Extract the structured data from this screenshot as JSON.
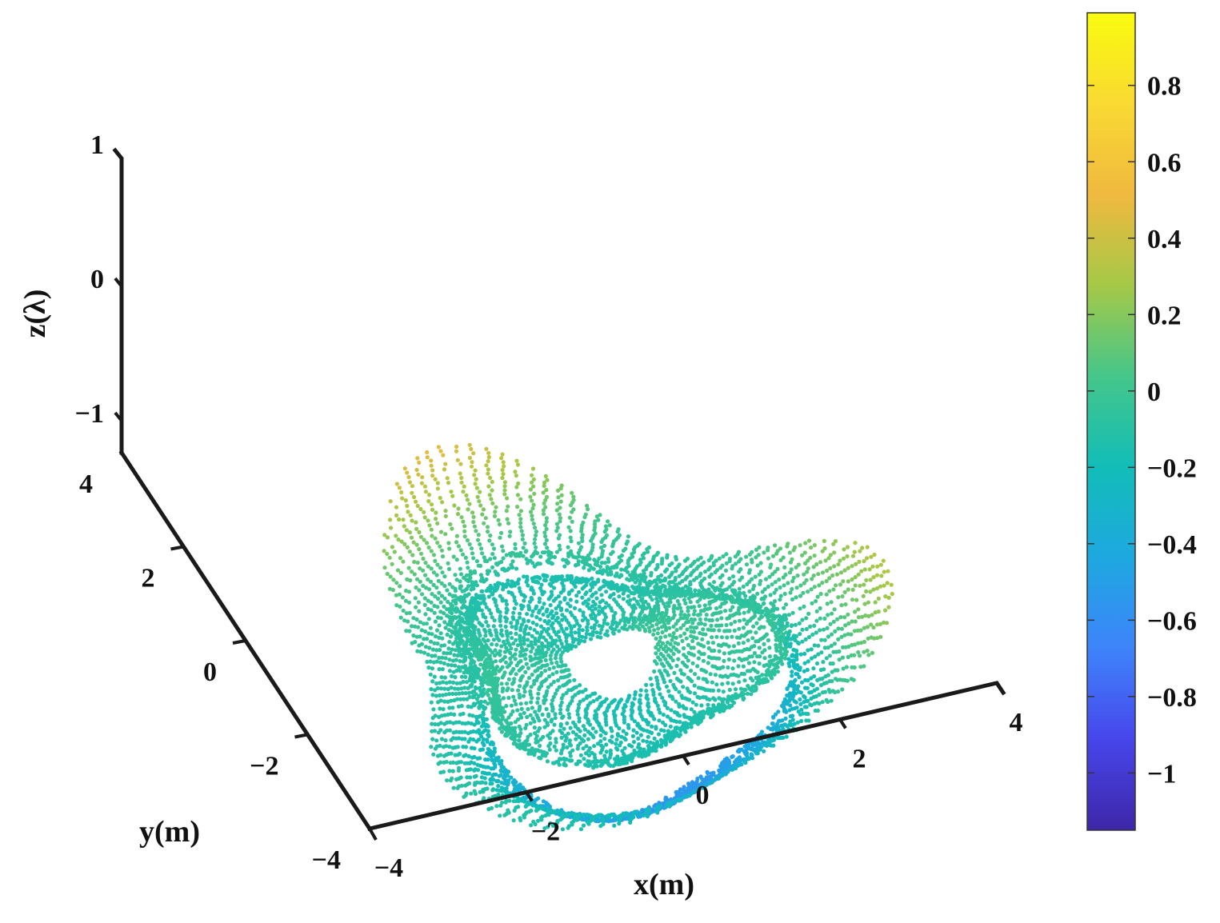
{
  "chart_data": {
    "type": "scatter",
    "title": "",
    "xlabel": "x(m)",
    "ylabel": "y(m)",
    "zlabel": "z(λ)",
    "xlim": [
      -4,
      4
    ],
    "ylim": [
      -4,
      4
    ],
    "zlim": [
      -1.2,
      1
    ],
    "x_ticks": [
      "−4",
      "−2",
      "0",
      "2",
      "4"
    ],
    "y_ticks": [
      "−4",
      "−2",
      "0",
      "2",
      "4"
    ],
    "z_ticks": [
      "−1",
      "0",
      "1"
    ],
    "x_tick_values": [
      -4,
      -2,
      0,
      2,
      4
    ],
    "y_tick_values": [
      -4,
      -2,
      0,
      2,
      4
    ],
    "z_tick_values": [
      -1,
      0,
      1
    ],
    "grid": false,
    "legend": "none",
    "colormap": "parula",
    "colorbar": {
      "placement": "right",
      "range": [
        -1.15,
        0.99
      ],
      "ticks": [
        "0.8",
        "0.6",
        "0.4",
        "0.2",
        "0",
        "−0.2",
        "−0.4",
        "−0.6",
        "−0.8",
        "−1"
      ],
      "tick_values": [
        0.8,
        0.6,
        0.4,
        0.2,
        0,
        -0.2,
        -0.4,
        -0.6,
        -0.8,
        -1
      ]
    },
    "colormap_stops": [
      "#3e26a8",
      "#4746eb",
      "#3e84fb",
      "#1ea8e0",
      "#12bdb8",
      "#45c68a",
      "#a5c847",
      "#f0b93f",
      "#f9d932",
      "#f9fb0e"
    ],
    "surface": {
      "r_min_m": 0.55,
      "r_max_m": 3.4,
      "ring_radius_m": 1.85,
      "ring_lobes": 3,
      "z_range": [
        -1.15,
        0.99
      ]
    }
  }
}
